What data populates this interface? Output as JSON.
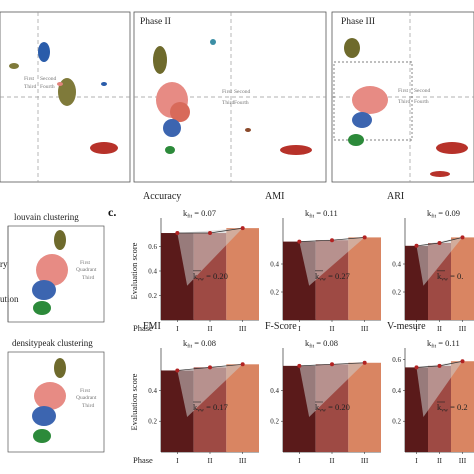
{
  "top_row": {
    "panels": [
      {
        "title": "",
        "quadrants": {
          "first": "First",
          "second": "Second",
          "third": "Third",
          "fourth": "Fourth"
        }
      },
      {
        "title": "Phase II",
        "quadrants": {
          "first": "First",
          "second": "Second",
          "third": "Third",
          "fourth": "Fourth"
        }
      },
      {
        "title": "Phase III",
        "quadrants": {
          "first": "First",
          "second": "Second",
          "third": "Third",
          "fourth": "Fourth"
        }
      }
    ],
    "left_edge_quadrant_text": [
      "First",
      "Second",
      "Third",
      "Fourth"
    ]
  },
  "left_column": {
    "clusterings": [
      {
        "title": "louvain clustering",
        "side_labels": [
          "ry",
          "ution"
        ]
      },
      {
        "title": "densitypeak clustering",
        "side_labels": []
      }
    ],
    "quadrant_text": {
      "first": "First",
      "quadrant": "Quadrant",
      "third": "Third"
    }
  },
  "section_label": "c.",
  "colors": {
    "phase1": "#5a1a1a",
    "phase2": "#9e4a44",
    "phase3": "#d98562",
    "line": "#b22222",
    "wedge": "#cccccc"
  },
  "chart_data": [
    {
      "type": "bar",
      "title": "Accuracy",
      "ylabel": "Evaluation score",
      "xlabel": "Phase",
      "categories": [
        "I",
        "II",
        "III"
      ],
      "values": [
        0.71,
        0.71,
        0.75
      ],
      "yticks": [
        0.2,
        0.4,
        0.6
      ],
      "ylim": [
        0,
        0.8
      ],
      "k_label": "k",
      "k_sub": "fit",
      "k_value": "= 0.07",
      "kw_label": "k",
      "kw_sub": "vw",
      "kw_value": "= 0.20"
    },
    {
      "type": "bar",
      "title": "AMI",
      "ylabel": "",
      "xlabel": "",
      "categories": [
        "I",
        "II",
        "III"
      ],
      "values": [
        0.56,
        0.57,
        0.59
      ],
      "yticks": [
        0.2,
        0.4
      ],
      "ylim": [
        0,
        0.7
      ],
      "k_label": "k",
      "k_sub": "fit",
      "k_value": "= 0.11",
      "kw_label": "k",
      "kw_sub": "vw",
      "kw_value": "= 0.27"
    },
    {
      "type": "bar",
      "title": "ARI",
      "ylabel": "",
      "xlabel": "",
      "categories": [
        "I",
        "II",
        "III"
      ],
      "values": [
        0.53,
        0.55,
        0.59
      ],
      "yticks": [
        0.2,
        0.4
      ],
      "ylim": [
        0,
        0.7
      ],
      "k_label": "k",
      "k_sub": "fit",
      "k_value": "= 0.09",
      "kw_label": "k",
      "kw_sub": "vw",
      "kw_value": "= 0."
    },
    {
      "type": "bar",
      "title": "FMI",
      "ylabel": "Evaluation score",
      "xlabel": "Phase",
      "categories": [
        "I",
        "II",
        "III"
      ],
      "values": [
        0.53,
        0.55,
        0.57
      ],
      "yticks": [
        0.2,
        0.4
      ],
      "ylim": [
        0,
        0.65
      ],
      "k_label": "k",
      "k_sub": "fit",
      "k_value": "= 0.08",
      "kw_label": "k",
      "kw_sub": "vw",
      "kw_value": "= 0.17"
    },
    {
      "type": "bar",
      "title": "F-Score",
      "ylabel": "",
      "xlabel": "",
      "categories": [
        "I",
        "II",
        "III"
      ],
      "values": [
        0.56,
        0.57,
        0.58
      ],
      "yticks": [
        0.2,
        0.4
      ],
      "ylim": [
        0,
        0.65
      ],
      "k_label": "k",
      "k_sub": "fit",
      "k_value": "= 0.08",
      "kw_label": "k",
      "kw_sub": "vw",
      "kw_value": "= 0.20"
    },
    {
      "type": "bar",
      "title": "V-mesure",
      "ylabel": "",
      "xlabel": "",
      "categories": [
        "I",
        "II",
        "III"
      ],
      "values": [
        0.55,
        0.56,
        0.59
      ],
      "yticks": [
        0.2,
        0.4,
        0.6
      ],
      "ylim": [
        0,
        0.65
      ],
      "k_label": "k",
      "k_sub": "fit",
      "k_value": "= 0.11",
      "kw_label": "k",
      "kw_sub": "vw",
      "kw_value": "= 0.2"
    }
  ]
}
